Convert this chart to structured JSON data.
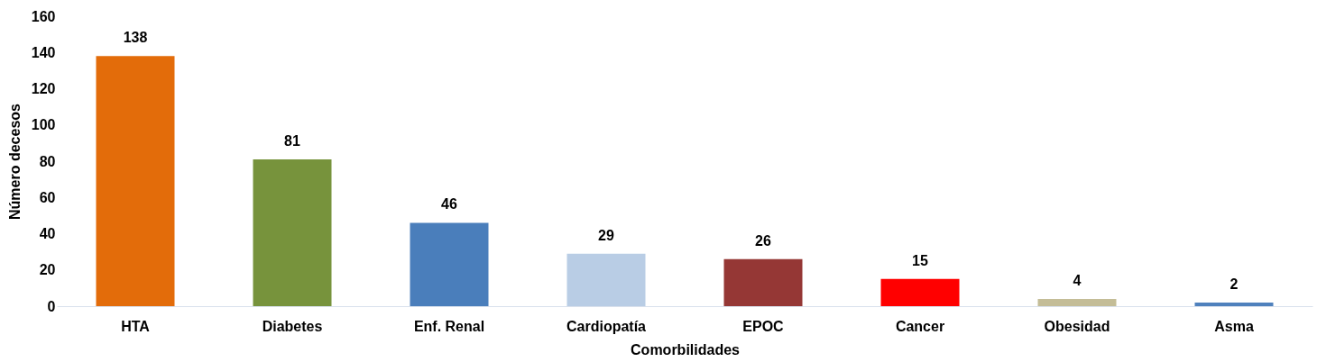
{
  "chart_data": {
    "type": "bar",
    "xlabel": "Comorbilidades",
    "ylabel": "Número decesos",
    "categories": [
      "HTA",
      "Diabetes",
      "Enf. Renal",
      "Cardiopatía",
      "EPOC",
      "Cancer",
      "Obesidad",
      "Asma"
    ],
    "values": [
      138,
      81,
      46,
      29,
      26,
      15,
      4,
      2
    ],
    "colors": [
      "#e36c0a",
      "#77933c",
      "#4a7ebb",
      "#b9cde5",
      "#953735",
      "#ff0000",
      "#c4bd97",
      "#4f81bd"
    ],
    "ylim": [
      0,
      160
    ],
    "yticks": [
      0,
      20,
      40,
      60,
      80,
      100,
      120,
      140,
      160
    ],
    "grid": false,
    "data_labels": true
  }
}
